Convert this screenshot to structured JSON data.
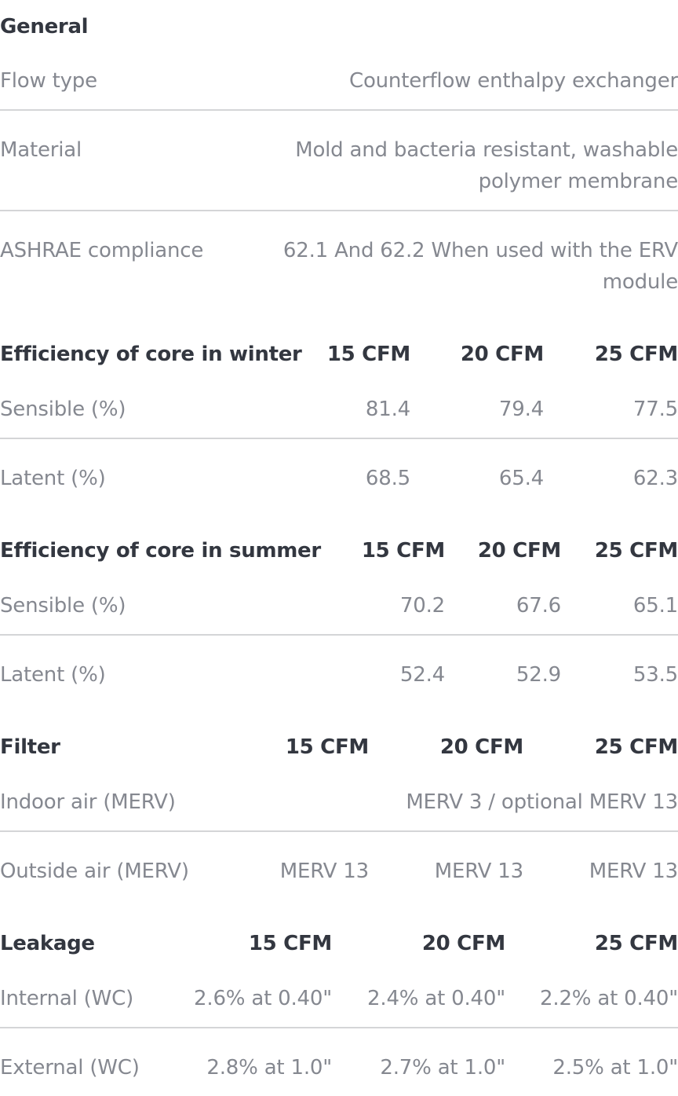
{
  "general": {
    "title": "General",
    "rows": [
      {
        "label": "Flow type",
        "value_lines": [
          "Counterflow enthalpy exchanger"
        ]
      },
      {
        "label": "Material",
        "value_lines": [
          "Mold and bacteria resistant, washable",
          "polymer membrane"
        ]
      },
      {
        "label": "ASHRAE compliance",
        "value_lines": [
          "62.1 And 62.2 When used with the ERV",
          "module"
        ]
      }
    ]
  },
  "winter": {
    "title": "Efficiency of core in winter",
    "columns": [
      "15 CFM",
      "20 CFM",
      "25 CFM"
    ],
    "rows": [
      {
        "label": "Sensible (%)",
        "values": [
          "81.4",
          "79.4",
          "77.5"
        ]
      },
      {
        "label": "Latent (%)",
        "values": [
          "68.5",
          "65.4",
          "62.3"
        ]
      }
    ]
  },
  "summer": {
    "title": "Efficiency of core in summer",
    "columns": [
      "15 CFM",
      "20 CFM",
      "25 CFM"
    ],
    "rows": [
      {
        "label": "Sensible (%)",
        "values": [
          "70.2",
          "67.6",
          "65.1"
        ]
      },
      {
        "label": "Latent (%)",
        "values": [
          "52.4",
          "52.9",
          "53.5"
        ]
      }
    ]
  },
  "filter": {
    "title": "Filter",
    "columns": [
      "15 CFM",
      "20 CFM",
      "25 CFM"
    ],
    "rows": [
      {
        "label": "Indoor air (MERV)",
        "merged_value": "MERV 3 / optional MERV 13"
      },
      {
        "label": "Outside air (MERV)",
        "values": [
          "MERV 13",
          "MERV 13",
          "MERV 13"
        ]
      }
    ]
  },
  "leakage": {
    "title": "Leakage",
    "columns": [
      "15 CFM",
      "20 CFM",
      "25 CFM"
    ],
    "rows": [
      {
        "label": "Internal (WC)",
        "values": [
          "2.6% at 0.40\"",
          "2.4% at 0.40\"",
          "2.2% at 0.40\""
        ]
      },
      {
        "label": "External (WC)",
        "values": [
          "2.8% at 1.0\"",
          "2.7% at 1.0\"",
          "2.5% at 1.0\""
        ]
      }
    ]
  }
}
